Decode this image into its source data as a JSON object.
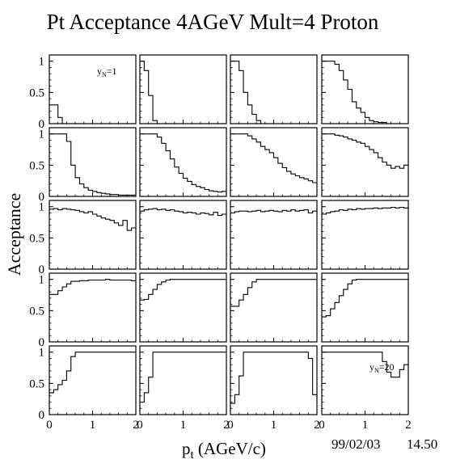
{
  "chart_data": {
    "type": "histogram-grid",
    "title": "Pt Acceptance 4AGeV Mult=4 Proton",
    "xlabel_main": "p",
    "xlabel_sub": "t",
    "xlabel_rest": " (AGeV/c)",
    "ylabel": "Acceptance",
    "footer_date": "99/02/03",
    "footer_time": "14.50",
    "rows": 5,
    "cols": 4,
    "xlim": [
      0,
      2
    ],
    "ylim": [
      0,
      1.1
    ],
    "x_ticks": [
      {
        "v": 0,
        "label": "0"
      },
      {
        "v": 1,
        "label": "1"
      },
      {
        "v": 2,
        "label": "2"
      }
    ],
    "y_ticks": [
      {
        "v": 0,
        "label": "0"
      },
      {
        "v": 0.5,
        "label": "0.5"
      },
      {
        "v": 1,
        "label": "1"
      }
    ],
    "bin_width": 0.1,
    "annotations": [
      {
        "panel": 0,
        "text": "y",
        "sub": "N",
        "rest": "=1"
      },
      {
        "panel": 19,
        "text": "y",
        "sub": "N",
        "rest": "=20"
      }
    ],
    "panels": [
      [
        0.3,
        0.3,
        0.1,
        0,
        0,
        0,
        0,
        0,
        0,
        0,
        0,
        0,
        0,
        0,
        0,
        0,
        0,
        0,
        0,
        0
      ],
      [
        1.0,
        0.85,
        0.45,
        0.05,
        0,
        0,
        0,
        0,
        0,
        0,
        0,
        0,
        0,
        0,
        0,
        0,
        0,
        0,
        0,
        0
      ],
      [
        1.0,
        1.0,
        0.85,
        0.5,
        0.3,
        0.15,
        0.05,
        0,
        0,
        0,
        0,
        0,
        0,
        0,
        0,
        0,
        0,
        0,
        0,
        0
      ],
      [
        1.0,
        1.0,
        1.0,
        0.95,
        0.85,
        0.7,
        0.55,
        0.35,
        0.25,
        0.18,
        0.1,
        0.05,
        0.03,
        0.02,
        0.02,
        0,
        0,
        0,
        0,
        0
      ],
      [
        1.0,
        1.0,
        1.0,
        1.0,
        0.88,
        0.5,
        0.3,
        0.2,
        0.14,
        0.1,
        0.08,
        0.06,
        0.05,
        0.04,
        0.03,
        0.03,
        0.02,
        0.02,
        0.02,
        0.02
      ],
      [
        1.0,
        1.0,
        1.0,
        1.0,
        0.95,
        0.85,
        0.73,
        0.6,
        0.47,
        0.37,
        0.29,
        0.24,
        0.19,
        0.16,
        0.14,
        0.11,
        0.09,
        0.08,
        0.07,
        0.08
      ],
      [
        1.0,
        1.0,
        1.0,
        1.0,
        0.97,
        0.92,
        0.87,
        0.8,
        0.75,
        0.7,
        0.62,
        0.53,
        0.46,
        0.4,
        0.36,
        0.33,
        0.3,
        0.28,
        0.25,
        0.22
      ],
      [
        1.0,
        1.0,
        1.0,
        0.98,
        0.97,
        0.95,
        0.92,
        0.9,
        0.87,
        0.85,
        0.8,
        0.75,
        0.7,
        0.62,
        0.55,
        0.5,
        0.45,
        0.48,
        0.45,
        0.5
      ],
      [
        0.96,
        0.97,
        0.95,
        0.97,
        0.96,
        0.95,
        0.94,
        0.92,
        0.9,
        0.92,
        0.88,
        0.85,
        0.82,
        0.8,
        0.78,
        0.74,
        0.7,
        0.78,
        0.62,
        0.66
      ],
      [
        0.93,
        0.95,
        0.96,
        0.97,
        0.95,
        0.96,
        0.94,
        0.95,
        0.93,
        0.92,
        0.9,
        0.91,
        0.9,
        0.88,
        0.9,
        0.89,
        0.87,
        0.91,
        0.86,
        0.88
      ],
      [
        0.9,
        0.92,
        0.93,
        0.93,
        0.92,
        0.93,
        0.94,
        0.92,
        0.93,
        0.94,
        0.93,
        0.92,
        0.94,
        0.93,
        0.95,
        0.93,
        0.94,
        0.95,
        0.9,
        0.93
      ],
      [
        0.88,
        0.9,
        0.92,
        0.93,
        0.95,
        0.94,
        0.96,
        0.95,
        0.97,
        0.96,
        0.97,
        0.97,
        0.98,
        0.97,
        0.98,
        0.98,
        0.99,
        0.98,
        0.99,
        0.98
      ],
      [
        0.76,
        0.76,
        0.82,
        0.88,
        0.93,
        0.97,
        0.97,
        0.98,
        0.98,
        0.99,
        0.99,
        0.99,
        0.99,
        1.0,
        0.99,
        0.99,
        0.99,
        0.99,
        0.99,
        0.98
      ],
      [
        0.67,
        0.68,
        0.76,
        0.84,
        0.92,
        0.96,
        0.99,
        1.0,
        1.0,
        1.0,
        1.0,
        1.0,
        1.0,
        1.0,
        1.0,
        1.0,
        1.0,
        1.0,
        1.0,
        1.0
      ],
      [
        0.57,
        0.57,
        0.67,
        0.76,
        0.87,
        0.96,
        1.0,
        1.0,
        1.0,
        1.0,
        1.0,
        1.0,
        1.0,
        1.0,
        1.0,
        1.0,
        1.0,
        1.0,
        1.0,
        1.0
      ],
      [
        0.4,
        0.42,
        0.53,
        0.63,
        0.74,
        0.84,
        0.93,
        0.99,
        1.0,
        1.0,
        1.0,
        1.0,
        1.0,
        1.0,
        1.0,
        1.0,
        1.0,
        1.0,
        1.0,
        1.0
      ],
      [
        0.35,
        0.4,
        0.48,
        0.55,
        0.7,
        0.93,
        1.0,
        1.0,
        1.0,
        1.0,
        1.0,
        1.0,
        1.0,
        1.0,
        1.0,
        1.0,
        1.0,
        1.0,
        1.0,
        1.0
      ],
      [
        0.2,
        0.35,
        0.6,
        1.0,
        1.0,
        1.0,
        1.0,
        1.0,
        1.0,
        1.0,
        1.0,
        1.0,
        1.0,
        1.0,
        1.0,
        1.0,
        1.0,
        1.0,
        1.0,
        1.0
      ],
      [
        0.18,
        0.32,
        0.62,
        1.0,
        1.0,
        1.0,
        1.0,
        1.0,
        1.0,
        1.0,
        1.0,
        1.0,
        1.0,
        1.0,
        1.0,
        1.0,
        1.0,
        1.0,
        0.9,
        0.32
      ],
      [
        1.0,
        1.0,
        1.0,
        1.0,
        1.0,
        1.0,
        1.0,
        1.0,
        1.0,
        1.0,
        1.0,
        1.0,
        1.0,
        1.0,
        0.85,
        0.68,
        0.6,
        0.6,
        0.72,
        0.8
      ]
    ]
  }
}
